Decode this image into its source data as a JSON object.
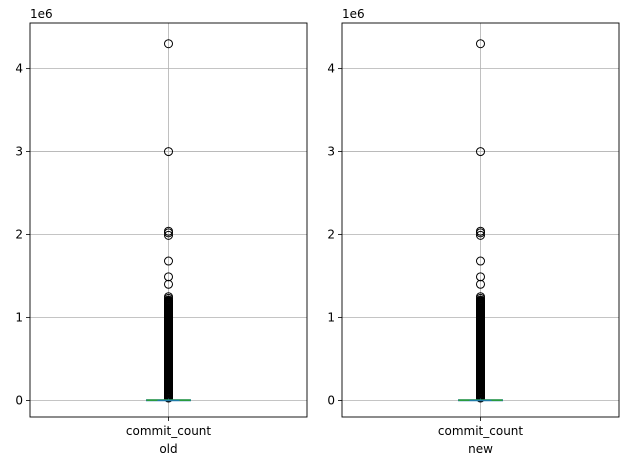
{
  "chart_data": [
    {
      "type": "box",
      "xlabel": "old",
      "categories": [
        "commit_count"
      ],
      "y_offset_label": "1e6",
      "y_ticks": [
        0,
        1,
        2,
        3,
        4
      ],
      "ylim": [
        -0.2,
        4.55
      ],
      "grid": true,
      "box": {
        "min": 0,
        "q1": 0.002,
        "median": 0.004,
        "q3": 0.008,
        "whisker_high": 0.02
      },
      "outliers": [
        4.3,
        3.0,
        2.04,
        2.02,
        1.99,
        1.68,
        1.49,
        1.4,
        1.25,
        1.23,
        1.21,
        1.2,
        1.19,
        1.18,
        1.17,
        1.15,
        1.13,
        1.1,
        1.07,
        1.05,
        1.0,
        0.95,
        0.9,
        0.85,
        0.8,
        0.75,
        0.7,
        0.65,
        0.6,
        0.55,
        0.5,
        0.45,
        0.4,
        0.35,
        0.3,
        0.25,
        0.2,
        0.15,
        0.1,
        0.06,
        0.04,
        0.03
      ]
    },
    {
      "type": "box",
      "xlabel": "new",
      "categories": [
        "commit_count"
      ],
      "y_offset_label": "1e6",
      "y_ticks": [
        0,
        1,
        2,
        3,
        4
      ],
      "ylim": [
        -0.2,
        4.55
      ],
      "grid": true,
      "box": {
        "min": 0,
        "q1": 0.002,
        "median": 0.004,
        "q3": 0.008,
        "whisker_high": 0.02
      },
      "outliers": [
        4.3,
        3.0,
        2.04,
        2.02,
        1.99,
        1.68,
        1.49,
        1.4,
        1.25,
        1.23,
        1.21,
        1.2,
        1.19,
        1.18,
        1.17,
        1.15,
        1.13,
        1.1,
        1.07,
        1.05,
        1.0,
        0.95,
        0.9,
        0.85,
        0.8,
        0.75,
        0.7,
        0.65,
        0.6,
        0.55,
        0.5,
        0.45,
        0.4,
        0.35,
        0.3,
        0.25,
        0.2,
        0.15,
        0.1,
        0.06,
        0.04,
        0.03
      ]
    }
  ],
  "colors": {
    "grid": "#b0b0b0",
    "median": "#2ca02c",
    "outlier": "#000000",
    "box": "#1f77b4"
  }
}
